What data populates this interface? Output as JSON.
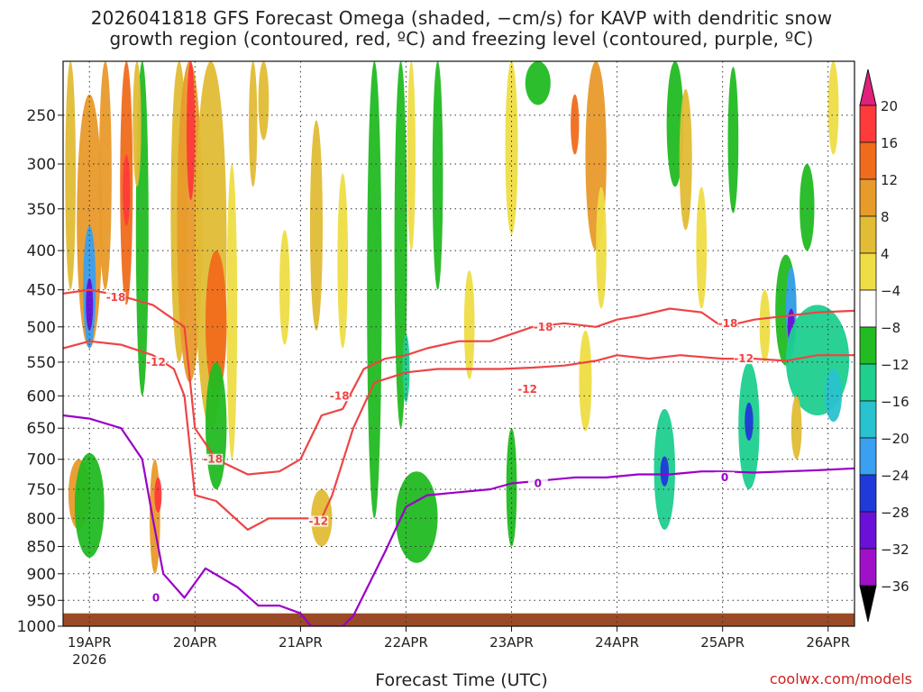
{
  "title_line1": "2026041818 GFS Forecast Omega (shaded, −cm/s) for KAVP with dendritic snow",
  "title_line2": "growth region (contoured, red, ºC) and freezing level (contoured, purple, ºC)",
  "credit": "coolwx.com/models",
  "colors": {
    "contour_red": "#ee4444",
    "contour_purple": "#9a00c8",
    "terrain": "#9a4a26",
    "grid": "#333333"
  },
  "chart_data": {
    "type": "heatmap",
    "title": "2026041818 GFS Forecast Omega (shaded, −cm/s) for KAVP with dendritic snow growth region (contoured, red, ºC) and freezing level (contoured, purple, ºC)",
    "xlabel": "Forecast Time (UTC)",
    "ylabel": "",
    "x_ticks": [
      "19APR",
      "20APR",
      "21APR",
      "22APR",
      "23APR",
      "24APR",
      "25APR",
      "26APR"
    ],
    "x_tick_sublabel": "2026",
    "x_range_days": [
      -0.25,
      7.25
    ],
    "y_ticks": [
      250,
      300,
      350,
      400,
      450,
      500,
      550,
      600,
      650,
      700,
      750,
      800,
      850,
      900,
      950,
      1000
    ],
    "y_range_hpa": [
      200,
      1000
    ],
    "grid": true,
    "colorbar": {
      "labels": [
        "20",
        "16",
        "12",
        "8",
        "4",
        "−4",
        "−8",
        "−12",
        "−16",
        "−20",
        "−24",
        "−28",
        "−32",
        "−36"
      ],
      "colors": [
        "#ff3a3a",
        "#f06c1c",
        "#e89a2a",
        "#e2bc35",
        "#eedd44",
        "#ffffff",
        "#22bb22",
        "#1ecf8e",
        "#29c2cf",
        "#3aa0f0",
        "#1f3ad8",
        "#6a10d8",
        "#a010c8",
        "#a8a8a8"
      ],
      "top_arrow_color": "#e0207a",
      "bottom_arrow_color": "#000000"
    },
    "series": [
      {
        "name": "-18",
        "color": "#ee4444",
        "x": [
          -0.25,
          0.0,
          0.3,
          0.6,
          0.9,
          1.0,
          1.2,
          1.5,
          1.8,
          2.0,
          2.2,
          2.4,
          2.6,
          2.8,
          3.0,
          3.2,
          3.5,
          3.8,
          4.0,
          4.2,
          4.5,
          4.8,
          5.0,
          5.2,
          5.5,
          5.8,
          6.0,
          6.3,
          6.6,
          6.9,
          7.25
        ],
        "y": [
          455,
          450,
          458,
          470,
          500,
          650,
          700,
          725,
          720,
          700,
          630,
          620,
          560,
          545,
          540,
          530,
          520,
          520,
          510,
          500,
          495,
          500,
          490,
          485,
          475,
          480,
          500,
          490,
          485,
          480,
          478
        ]
      },
      {
        "name": "-12",
        "color": "#ee4444",
        "x": [
          -0.25,
          0.0,
          0.3,
          0.6,
          0.8,
          0.9,
          1.0,
          1.2,
          1.5,
          1.7,
          2.0,
          2.2,
          2.3,
          2.5,
          2.7,
          3.0,
          3.3,
          3.6,
          3.9,
          4.2,
          4.5,
          4.8,
          5.0,
          5.3,
          5.6,
          6.0,
          6.3,
          6.6,
          6.9,
          7.25
        ],
        "y": [
          530,
          520,
          525,
          540,
          560,
          600,
          760,
          770,
          820,
          800,
          800,
          800,
          760,
          650,
          580,
          565,
          560,
          560,
          560,
          558,
          555,
          548,
          540,
          545,
          540,
          545,
          545,
          548,
          540,
          540
        ]
      },
      {
        "name": "0",
        "color": "#9a00c8",
        "x": [
          -0.25,
          0.0,
          0.3,
          0.5,
          0.6,
          0.7,
          0.9,
          1.1,
          1.4,
          1.6,
          1.8,
          2.0,
          2.1,
          2.4,
          2.5,
          2.8,
          3.0,
          3.2,
          3.5,
          3.8,
          4.0,
          4.3,
          4.6,
          4.9,
          5.2,
          5.5,
          5.8,
          6.0,
          6.3,
          6.6,
          6.9,
          7.25
        ],
        "y": [
          630,
          635,
          650,
          700,
          800,
          900,
          945,
          890,
          925,
          960,
          960,
          975,
          1000,
          1000,
          980,
          860,
          780,
          760,
          755,
          750,
          740,
          735,
          730,
          730,
          725,
          725,
          720,
          720,
          722,
          720,
          718,
          715
        ]
      }
    ],
    "contour_labels": [
      {
        "text": "-18",
        "x": 0.25,
        "y": 460
      },
      {
        "text": "-12",
        "x": 0.63,
        "y": 550
      },
      {
        "text": "-18",
        "x": 1.17,
        "y": 700
      },
      {
        "text": "-18",
        "x": 2.37,
        "y": 600
      },
      {
        "text": "-12",
        "x": 2.17,
        "y": 805
      },
      {
        "text": "-18",
        "x": 4.3,
        "y": 500
      },
      {
        "text": "-12",
        "x": 4.15,
        "y": 590
      },
      {
        "text": "-18",
        "x": 6.05,
        "y": 495
      },
      {
        "text": "-12",
        "x": 6.2,
        "y": 545
      },
      {
        "text": "0",
        "x": 0.63,
        "y": 945
      },
      {
        "text": "0",
        "x": 4.25,
        "y": 740
      },
      {
        "text": "0",
        "x": 6.02,
        "y": 730
      }
    ],
    "omega_blobs": [
      {
        "x": 0.0,
        "y": 380,
        "w": 0.12,
        "h": 300,
        "v": 10
      },
      {
        "x": 0.0,
        "y": 450,
        "w": 0.06,
        "h": 160,
        "v": -20
      },
      {
        "x": 0.0,
        "y": 470,
        "w": 0.03,
        "h": 70,
        "v": -26
      },
      {
        "x": -0.18,
        "y": 300,
        "w": 0.05,
        "h": 300,
        "v": 6
      },
      {
        "x": -0.1,
        "y": 760,
        "w": 0.1,
        "h": 120,
        "v": 8
      },
      {
        "x": 0.0,
        "y": 780,
        "w": 0.14,
        "h": 180,
        "v": -8
      },
      {
        "x": 0.15,
        "y": 300,
        "w": 0.06,
        "h": 300,
        "v": 8
      },
      {
        "x": 0.35,
        "y": 320,
        "w": 0.06,
        "h": 300,
        "v": 12
      },
      {
        "x": 0.35,
        "y": 330,
        "w": 0.025,
        "h": 80,
        "v": 16
      },
      {
        "x": 0.5,
        "y": 400,
        "w": 0.06,
        "h": 400,
        "v": -8
      },
      {
        "x": 0.45,
        "y": 250,
        "w": 0.04,
        "h": 150,
        "v": 6
      },
      {
        "x": 0.62,
        "y": 800,
        "w": 0.05,
        "h": 200,
        "v": 8
      },
      {
        "x": 0.65,
        "y": 760,
        "w": 0.025,
        "h": 60,
        "v": 16
      },
      {
        "x": 0.85,
        "y": 300,
        "w": 0.08,
        "h": 500,
        "v": 6
      },
      {
        "x": 0.95,
        "y": 300,
        "w": 0.12,
        "h": 560,
        "v": 10
      },
      {
        "x": 0.96,
        "y": 240,
        "w": 0.04,
        "h": 200,
        "v": 16
      },
      {
        "x": 1.15,
        "y": 300,
        "w": 0.15,
        "h": 700,
        "v": 6
      },
      {
        "x": 1.2,
        "y": 500,
        "w": 0.1,
        "h": 200,
        "v": 12
      },
      {
        "x": 1.2,
        "y": 650,
        "w": 0.1,
        "h": 200,
        "v": -8
      },
      {
        "x": 1.35,
        "y": 500,
        "w": 0.05,
        "h": 400,
        "v": 5
      },
      {
        "x": 1.55,
        "y": 250,
        "w": 0.04,
        "h": 150,
        "v": 6
      },
      {
        "x": 1.65,
        "y": 200,
        "w": 0.05,
        "h": 150,
        "v": 6
      },
      {
        "x": 1.85,
        "y": 450,
        "w": 0.05,
        "h": 150,
        "v": 5
      },
      {
        "x": 2.15,
        "y": 380,
        "w": 0.06,
        "h": 250,
        "v": 6
      },
      {
        "x": 2.2,
        "y": 800,
        "w": 0.1,
        "h": 100,
        "v": 6
      },
      {
        "x": 2.4,
        "y": 420,
        "w": 0.05,
        "h": 220,
        "v": 5
      },
      {
        "x": 2.7,
        "y": 450,
        "w": 0.07,
        "h": 700,
        "v": -8
      },
      {
        "x": 2.95,
        "y": 400,
        "w": 0.06,
        "h": 500,
        "v": -8
      },
      {
        "x": 3.05,
        "y": 300,
        "w": 0.04,
        "h": 200,
        "v": 5
      },
      {
        "x": 3.0,
        "y": 560,
        "w": 0.03,
        "h": 100,
        "v": -12
      },
      {
        "x": 3.1,
        "y": 800,
        "w": 0.2,
        "h": 160,
        "v": -8
      },
      {
        "x": 3.3,
        "y": 300,
        "w": 0.05,
        "h": 300,
        "v": -8
      },
      {
        "x": 3.6,
        "y": 500,
        "w": 0.05,
        "h": 150,
        "v": 5
      },
      {
        "x": 4.0,
        "y": 280,
        "w": 0.06,
        "h": 200,
        "v": 5
      },
      {
        "x": 4.0,
        "y": 750,
        "w": 0.05,
        "h": 200,
        "v": -8
      },
      {
        "x": 4.25,
        "y": 200,
        "w": 0.12,
        "h": 80,
        "v": -8
      },
      {
        "x": 4.8,
        "y": 300,
        "w": 0.1,
        "h": 200,
        "v": 8
      },
      {
        "x": 4.6,
        "y": 260,
        "w": 0.04,
        "h": 60,
        "v": 12
      },
      {
        "x": 4.85,
        "y": 400,
        "w": 0.05,
        "h": 150,
        "v": 5
      },
      {
        "x": 4.7,
        "y": 580,
        "w": 0.06,
        "h": 150,
        "v": 5
      },
      {
        "x": 5.45,
        "y": 720,
        "w": 0.1,
        "h": 200,
        "v": -12
      },
      {
        "x": 5.45,
        "y": 720,
        "w": 0.04,
        "h": 50,
        "v": -24
      },
      {
        "x": 5.55,
        "y": 250,
        "w": 0.08,
        "h": 150,
        "v": -8
      },
      {
        "x": 5.65,
        "y": 300,
        "w": 0.06,
        "h": 150,
        "v": 6
      },
      {
        "x": 5.8,
        "y": 400,
        "w": 0.05,
        "h": 150,
        "v": 5
      },
      {
        "x": 6.1,
        "y": 280,
        "w": 0.05,
        "h": 150,
        "v": -8
      },
      {
        "x": 6.25,
        "y": 650,
        "w": 0.1,
        "h": 200,
        "v": -12
      },
      {
        "x": 6.25,
        "y": 640,
        "w": 0.04,
        "h": 60,
        "v": -24
      },
      {
        "x": 6.4,
        "y": 500,
        "w": 0.05,
        "h": 100,
        "v": 5
      },
      {
        "x": 6.6,
        "y": 480,
        "w": 0.1,
        "h": 150,
        "v": -8
      },
      {
        "x": 6.65,
        "y": 480,
        "w": 0.05,
        "h": 120,
        "v": -20
      },
      {
        "x": 6.65,
        "y": 500,
        "w": 0.025,
        "h": 50,
        "v": -26
      },
      {
        "x": 6.9,
        "y": 550,
        "w": 0.3,
        "h": 160,
        "v": -12
      },
      {
        "x": 7.05,
        "y": 600,
        "w": 0.08,
        "h": 80,
        "v": -16
      },
      {
        "x": 6.8,
        "y": 350,
        "w": 0.07,
        "h": 100,
        "v": -8
      },
      {
        "x": 7.05,
        "y": 230,
        "w": 0.05,
        "h": 120,
        "v": 5
      },
      {
        "x": 6.7,
        "y": 650,
        "w": 0.05,
        "h": 100,
        "v": 6
      }
    ],
    "terrain_surface_hpa": 975
  }
}
